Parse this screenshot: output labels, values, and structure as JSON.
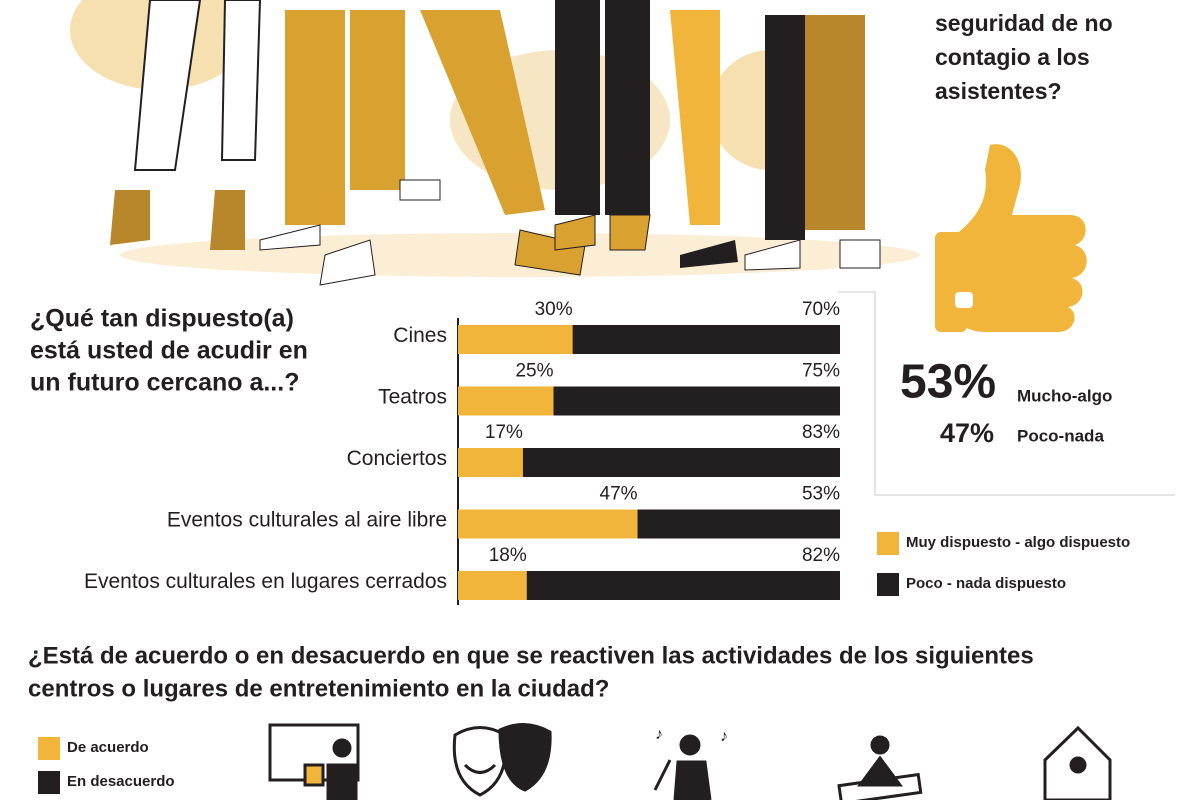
{
  "chart_data": {
    "type": "stacked-bar-horizontal",
    "title_lines": [
      "¿Qué tan dispuesto(a)",
      "está usted de acudir en",
      "un futuro cercano a...?"
    ],
    "categories": [
      "Cines",
      "Teatros",
      "Conciertos",
      "Eventos culturales al aire libre",
      "Eventos culturales en lugares cerrados"
    ],
    "series": [
      {
        "name": "Muy dispuesto - algo dispuesto",
        "color": "#f0b53a",
        "values": [
          30,
          25,
          17,
          47,
          18
        ],
        "value_labels": [
          "30%",
          "25%",
          "17%",
          "47%",
          "18%"
        ]
      },
      {
        "name": "Poco - nada dispuesto",
        "color": "#231f20",
        "values": [
          70,
          75,
          83,
          53,
          82
        ],
        "value_labels": [
          "70%",
          "75%",
          "83%",
          "53%",
          "82%"
        ]
      }
    ],
    "xlim": [
      0,
      100
    ]
  },
  "side_panel": {
    "question_lines": [
      "seguridad de no",
      "contagio a los",
      "asistentes?"
    ],
    "stats": [
      {
        "value": "53%",
        "label": "Mucho-algo"
      },
      {
        "value": "47%",
        "label": "Poco-nada"
      }
    ]
  },
  "section2": {
    "title_lines": [
      "¿Está de acuerdo o en desacuerdo en que se reactiven las actividades de los siguientes",
      "centros o lugares de entretenimiento en la ciudad?"
    ],
    "legend": [
      {
        "name": "De acuerdo",
        "color": "#f0b53a"
      },
      {
        "name": "En desacuerdo",
        "color": "#231f20"
      }
    ]
  }
}
